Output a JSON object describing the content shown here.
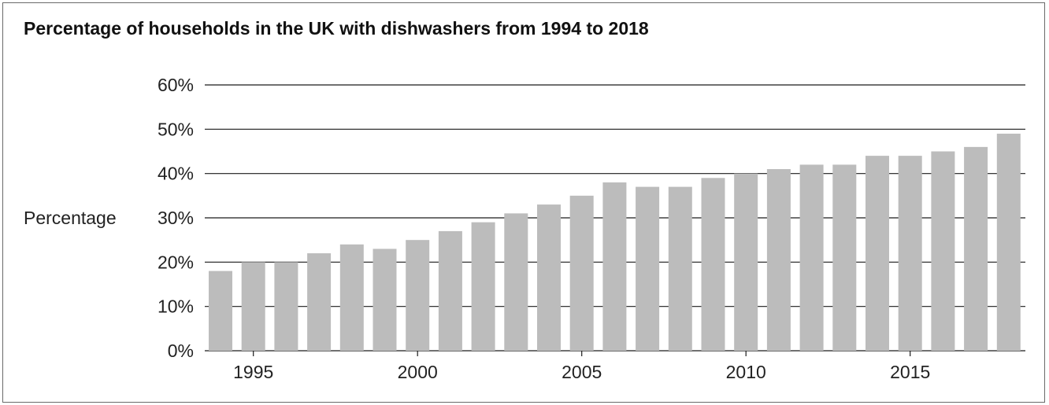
{
  "chart_data": {
    "type": "bar",
    "title": "Percentage of households in the UK with dishwashers from 1994 to 2018",
    "xlabel": "",
    "ylabel": "Percentage",
    "x": [
      1994,
      1995,
      1996,
      1997,
      1998,
      1999,
      2000,
      2001,
      2002,
      2003,
      2004,
      2005,
      2006,
      2007,
      2008,
      2009,
      2010,
      2011,
      2012,
      2013,
      2014,
      2015,
      2016,
      2017,
      2018
    ],
    "values": [
      18,
      20,
      20,
      22,
      24,
      23,
      25,
      27,
      29,
      31,
      33,
      35,
      38,
      37,
      37,
      39,
      40,
      41,
      42,
      42,
      44,
      44,
      45,
      46,
      49
    ],
    "x_tick_labels": [
      "1995",
      "2000",
      "2005",
      "2010",
      "2015"
    ],
    "y_tick_labels": [
      "0%",
      "10%",
      "20%",
      "30%",
      "40%",
      "50%",
      "60%"
    ],
    "ylim": [
      0,
      60
    ],
    "grid": true,
    "legend": "none",
    "bar_color": "#bcbcbc"
  }
}
